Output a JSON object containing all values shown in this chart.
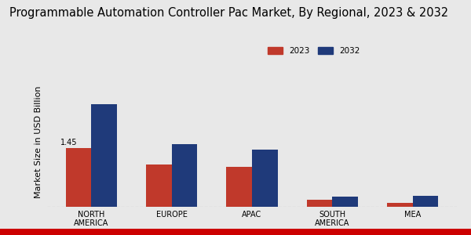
{
  "title": "Programmable Automation Controller Pac Market, By Regional, 2023 & 2032",
  "ylabel": "Market Size in USD Billion",
  "categories": [
    "NORTH\nAMERICA",
    "EUROPE",
    "APAC",
    "SOUTH\nAMERICA",
    "MEA"
  ],
  "values_2023": [
    1.45,
    1.05,
    0.98,
    0.18,
    0.1
  ],
  "values_2032": [
    2.55,
    1.55,
    1.42,
    0.26,
    0.28
  ],
  "color_2023": "#c0392b",
  "color_2032": "#1f3a7a",
  "annotation_text": "1.45",
  "background_color": "#e8e8e8",
  "bar_width": 0.32,
  "legend_labels": [
    "2023",
    "2032"
  ],
  "title_fontsize": 10.5,
  "label_fontsize": 8,
  "tick_fontsize": 7,
  "bottom_strip_color": "#cc0000",
  "ylim": [
    0,
    3.2
  ],
  "grid_color": "#999999"
}
